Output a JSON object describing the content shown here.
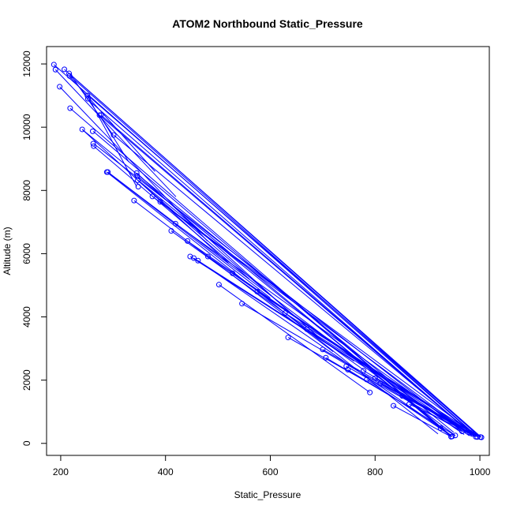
{
  "chart_data": {
    "type": "scatter",
    "title": "ATOM2 Northbound Static_Pressure",
    "xlabel": "Static_Pressure",
    "ylabel": "Altitude (m)",
    "xlim": [
      173,
      1018
    ],
    "ylim": [
      -380,
      12550
    ],
    "x_ticks": [
      200,
      400,
      600,
      800,
      1000
    ],
    "y_ticks": [
      0,
      2000,
      4000,
      6000,
      8000,
      10000,
      12000
    ],
    "grid": false,
    "color": "#0000ff",
    "series": [
      {
        "points": [
          [
            187,
            11980
          ],
          [
            190,
            11820
          ],
          [
            198,
            11280
          ],
          [
            207,
            11830
          ],
          [
            216,
            11700
          ],
          [
            217,
            11620
          ],
          [
            218,
            10600
          ],
          [
            241,
            9930
          ],
          [
            251,
            11000
          ],
          [
            252,
            10900
          ],
          [
            261,
            9870
          ],
          [
            262,
            9480
          ],
          [
            263,
            9400
          ],
          [
            274,
            10380
          ],
          [
            277,
            10380
          ],
          [
            288,
            8580
          ],
          [
            290,
            8580
          ],
          [
            301,
            9750
          ],
          [
            340,
            7680
          ],
          [
            345,
            8550
          ],
          [
            346,
            8460
          ],
          [
            347,
            8320
          ],
          [
            348,
            8120
          ],
          [
            375,
            7810
          ],
          [
            390,
            7640
          ],
          [
            411,
            6720
          ],
          [
            419,
            6950
          ],
          [
            442,
            6400
          ],
          [
            447,
            5910
          ],
          [
            454,
            5860
          ],
          [
            462,
            5780
          ],
          [
            481,
            5910
          ],
          [
            502,
            5020
          ],
          [
            528,
            5380
          ],
          [
            546,
            4420
          ],
          [
            575,
            4800
          ],
          [
            628,
            4120
          ],
          [
            634,
            3350
          ],
          [
            670,
            3610
          ],
          [
            700,
            2970
          ],
          [
            706,
            2710
          ],
          [
            745,
            2440
          ],
          [
            748,
            2330
          ],
          [
            778,
            2300
          ],
          [
            784,
            2020
          ],
          [
            790,
            1610
          ],
          [
            800,
            2060
          ],
          [
            810,
            1890
          ],
          [
            835,
            1190
          ],
          [
            852,
            1500
          ],
          [
            865,
            1240
          ],
          [
            925,
            480
          ],
          [
            945,
            210
          ],
          [
            947,
            220
          ],
          [
            953,
            250
          ],
          [
            966,
            380
          ],
          [
            981,
            340
          ],
          [
            985,
            300
          ],
          [
            992,
            210
          ],
          [
            995,
            200
          ],
          [
            1001,
            200
          ],
          [
            1003,
            190
          ]
        ],
        "segments": [
          [
            [
              216,
              11700
            ],
            [
              1000,
              200
            ]
          ],
          [
            [
              218,
              11620
            ],
            [
              995,
              220
            ]
          ],
          [
            [
              252,
              11000
            ],
            [
              1001,
              200
            ]
          ],
          [
            [
              250,
              10900
            ],
            [
              990,
              210
            ]
          ],
          [
            [
              277,
              10380
            ],
            [
              985,
              300
            ]
          ],
          [
            [
              274,
              10380
            ],
            [
              981,
              340
            ]
          ],
          [
            [
              301,
              9750
            ],
            [
              992,
              210
            ]
          ],
          [
            [
              263,
              9480
            ],
            [
              966,
              380
            ]
          ],
          [
            [
              290,
              8580
            ],
            [
              953,
              250
            ]
          ],
          [
            [
              346,
              8460
            ],
            [
              945,
              210
            ]
          ],
          [
            [
              207,
              11830
            ],
            [
              1003,
              190
            ]
          ],
          [
            [
              187,
              11980
            ],
            [
              995,
              200
            ]
          ],
          [
            [
              262,
              9870
            ],
            [
              930,
              450
            ]
          ],
          [
            [
              241,
              9930
            ],
            [
              950,
              350
            ]
          ],
          [
            [
              218,
              10600
            ],
            [
              935,
              380
            ]
          ],
          [
            [
              288,
              8580
            ],
            [
              920,
              300
            ]
          ],
          [
            [
              348,
              8320
            ],
            [
              947,
              220
            ]
          ],
          [
            [
              375,
              7810
            ],
            [
              985,
              250
            ]
          ],
          [
            [
              390,
              7640
            ],
            [
              990,
              300
            ]
          ],
          [
            [
              419,
              6950
            ],
            [
              975,
              330
            ]
          ],
          [
            [
              442,
              6400
            ],
            [
              960,
              400
            ]
          ],
          [
            [
              462,
              5780
            ],
            [
              945,
              260
            ]
          ],
          [
            [
              481,
              5910
            ],
            [
              970,
              280
            ]
          ],
          [
            [
              528,
              5380
            ],
            [
              980,
              240
            ]
          ],
          [
            [
              575,
              4800
            ],
            [
              990,
              220
            ]
          ],
          [
            [
              628,
              4120
            ],
            [
              1001,
              200
            ]
          ],
          [
            [
              670,
              3610
            ],
            [
              995,
              230
            ]
          ],
          [
            [
              700,
              2970
            ],
            [
              985,
              260
            ]
          ],
          [
            [
              745,
              2440
            ],
            [
              966,
              380
            ]
          ],
          [
            [
              778,
              2300
            ],
            [
              981,
              340
            ]
          ],
          [
            [
              800,
              2060
            ],
            [
              992,
              210
            ]
          ],
          [
            [
              810,
              1890
            ],
            [
              1003,
              190
            ]
          ],
          [
            [
              852,
              1500
            ],
            [
              985,
              300
            ]
          ],
          [
            [
              865,
              1240
            ],
            [
              990,
              260
            ]
          ],
          [
            [
              835,
              1190
            ],
            [
              945,
              210
            ]
          ],
          [
            [
              748,
              2330
            ],
            [
              953,
              250
            ]
          ],
          [
            [
              784,
              2020
            ],
            [
              947,
              220
            ]
          ],
          [
            [
              546,
              4420
            ],
            [
              870,
              1300
            ]
          ],
          [
            [
              454,
              5860
            ],
            [
              800,
              2200
            ]
          ],
          [
            [
              447,
              5910
            ],
            [
              760,
              2600
            ]
          ],
          [
            [
              411,
              6720
            ],
            [
              780,
              2300
            ]
          ],
          [
            [
              340,
              7680
            ],
            [
              720,
              2900
            ]
          ],
          [
            [
              347,
              8320
            ],
            [
              690,
              3400
            ]
          ],
          [
            [
              345,
              8550
            ],
            [
              640,
              4100
            ]
          ],
          [
            [
              290,
              8580
            ],
            [
              600,
              4600
            ]
          ],
          [
            [
              263,
              9400
            ],
            [
              560,
              5200
            ]
          ],
          [
            [
              241,
              9930
            ],
            [
              520,
              5700
            ]
          ],
          [
            [
              198,
              11280
            ],
            [
              480,
              6400
            ]
          ],
          [
            [
              190,
              11820
            ],
            [
              420,
              7800
            ]
          ],
          [
            [
              216,
              11620
            ],
            [
              380,
              8600
            ]
          ],
          [
            [
              251,
              11000
            ],
            [
              345,
              8120
            ]
          ],
          [
            [
              274,
              10380
            ],
            [
              330,
              8900
            ]
          ],
          [
            [
              217,
              11700
            ],
            [
              300,
              9750
            ]
          ],
          [
            [
              502,
              5020
            ],
            [
              790,
              1610
            ]
          ],
          [
            [
              634,
              3350
            ],
            [
              800,
              1800
            ]
          ],
          [
            [
              706,
              2710
            ],
            [
              860,
              1200
            ]
          ]
        ]
      }
    ]
  }
}
